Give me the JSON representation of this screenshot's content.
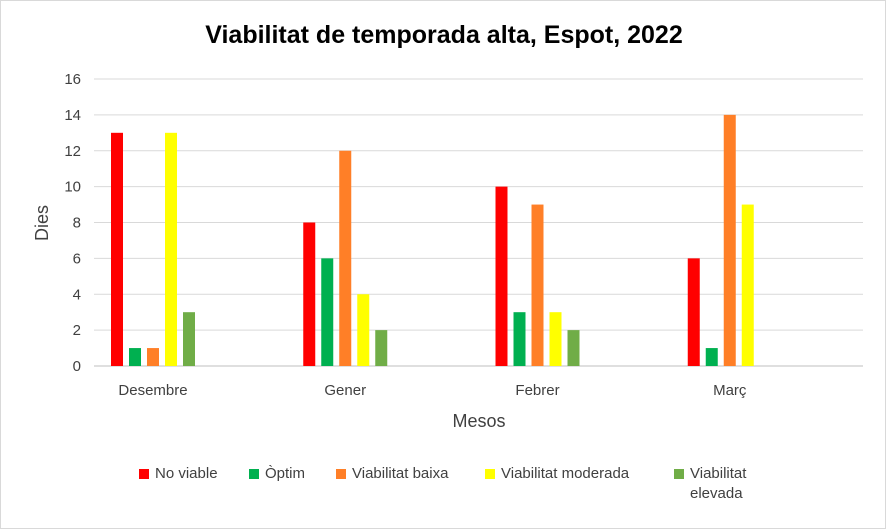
{
  "chart_data": {
    "type": "bar",
    "title": "Viabilitat de temporada alta, Espot, 2022",
    "xlabel": "Mesos",
    "ylabel": "Dies",
    "ylim": [
      0,
      16
    ],
    "yticks": [
      "0",
      "2",
      "4",
      "6",
      "8",
      "10",
      "12",
      "14",
      "16"
    ],
    "grid": true,
    "legend_position": "bottom",
    "categories": [
      "Desembre",
      "Gener",
      "Febrer",
      "Març"
    ],
    "series": [
      {
        "name": "No viable",
        "color": "#ff0000",
        "values": [
          13,
          8,
          10,
          6
        ]
      },
      {
        "name": "Òptim",
        "color": "#00b050",
        "values": [
          1,
          6,
          3,
          1
        ]
      },
      {
        "name": "Viabilitat baixa",
        "color": "#ff7f27",
        "values": [
          1,
          12,
          9,
          14
        ]
      },
      {
        "name": "Viabilitat moderada",
        "color": "#ffff00",
        "values": [
          13,
          4,
          3,
          9
        ]
      },
      {
        "name": "Viabilitat elevada",
        "color": "#70ad47",
        "values": [
          3,
          2,
          2,
          0
        ]
      }
    ]
  }
}
